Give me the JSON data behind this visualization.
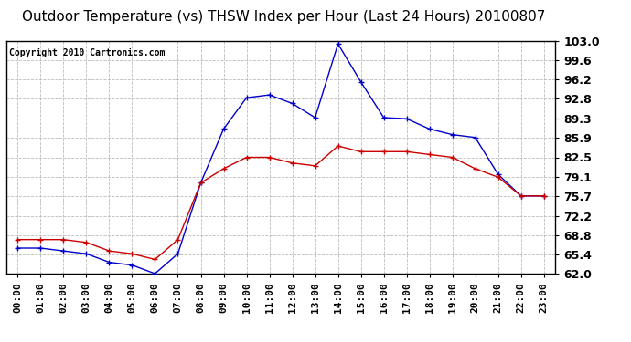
{
  "title": "Outdoor Temperature (vs) THSW Index per Hour (Last 24 Hours) 20100807",
  "copyright": "Copyright 2010 Cartronics.com",
  "x_labels": [
    "00:00",
    "01:00",
    "02:00",
    "03:00",
    "04:00",
    "05:00",
    "06:00",
    "07:00",
    "08:00",
    "09:00",
    "10:00",
    "11:00",
    "12:00",
    "13:00",
    "14:00",
    "15:00",
    "16:00",
    "17:00",
    "18:00",
    "19:00",
    "20:00",
    "21:00",
    "22:00",
    "23:00"
  ],
  "temp_red": [
    68.0,
    68.0,
    68.0,
    67.5,
    66.0,
    65.5,
    64.5,
    68.0,
    78.0,
    80.5,
    82.5,
    82.5,
    81.5,
    81.0,
    84.5,
    83.5,
    83.5,
    83.5,
    83.0,
    82.5,
    80.5,
    79.0,
    75.7,
    75.7
  ],
  "thsw_blue": [
    66.5,
    66.5,
    66.0,
    65.5,
    64.0,
    63.5,
    62.0,
    65.5,
    78.0,
    87.5,
    93.0,
    93.5,
    92.0,
    89.5,
    102.5,
    95.8,
    89.5,
    89.3,
    87.5,
    86.5,
    86.0,
    79.5,
    75.7,
    75.7
  ],
  "y_ticks": [
    62.0,
    65.4,
    68.8,
    72.2,
    75.7,
    79.1,
    82.5,
    85.9,
    89.3,
    92.8,
    96.2,
    99.6,
    103.0
  ],
  "y_tick_labels": [
    "62.0",
    "65.4",
    "68.8",
    "72.2",
    "75.7",
    "79.1",
    "82.5",
    "85.9",
    "89.3",
    "92.8",
    "96.2",
    "99.6",
    "103.0"
  ],
  "y_min": 62.0,
  "y_max": 103.0,
  "red_color": "#CC0000",
  "blue_color": "#0000CC",
  "bg_color": "#FFFFFF",
  "grid_color": "#BBBBBB",
  "title_fontsize": 11,
  "copyright_fontsize": 7,
  "tick_fontsize": 8,
  "ytick_fontsize": 9
}
